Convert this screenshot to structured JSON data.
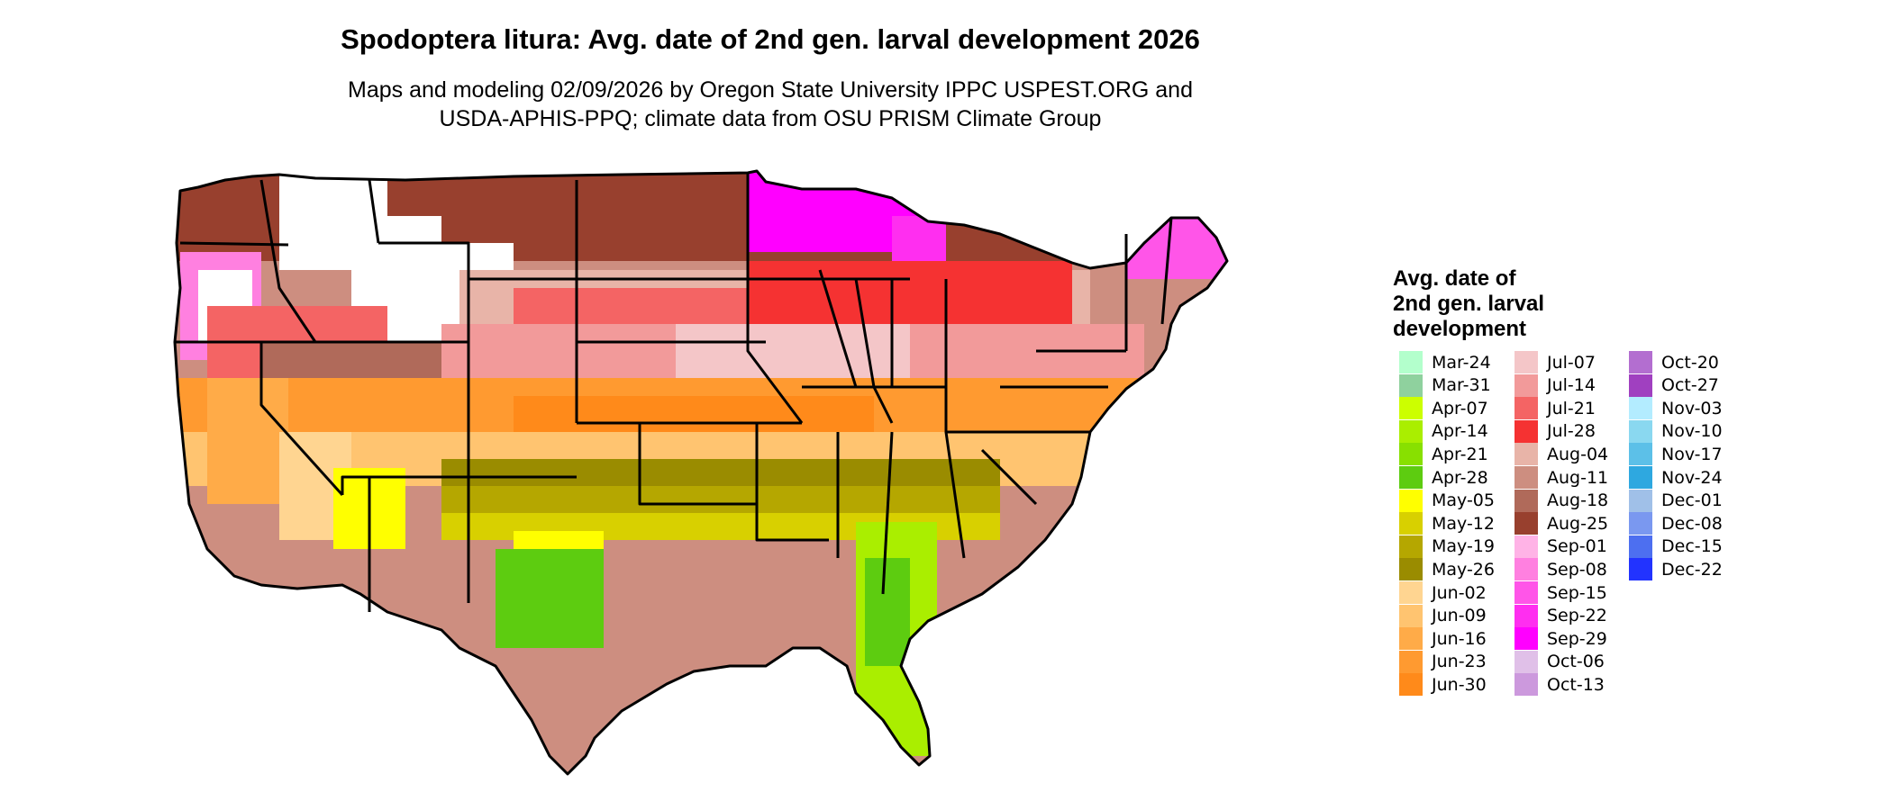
{
  "title": "Spodoptera litura: Avg. date of 2nd gen. larval development 2026",
  "subtitle_line1": "Maps and modeling 02/09/2026 by Oregon State University IPPC USPEST.ORG and",
  "subtitle_line2": "USDA-APHIS-PPQ; climate data from OSU PRISM Climate Group",
  "legend": {
    "title_lines": [
      "Avg. date of",
      "2nd gen. larval",
      "development"
    ],
    "items": [
      {
        "label": "Mar-24",
        "color": "#b3ffcc"
      },
      {
        "label": "Mar-31",
        "color": "#8fd19e"
      },
      {
        "label": "Apr-07",
        "color": "#ccff00"
      },
      {
        "label": "Apr-14",
        "color": "#aaee00"
      },
      {
        "label": "Apr-21",
        "color": "#88e000"
      },
      {
        "label": "Apr-28",
        "color": "#5dcc10"
      },
      {
        "label": "May-05",
        "color": "#ffff00"
      },
      {
        "label": "May-12",
        "color": "#d8d000"
      },
      {
        "label": "May-19",
        "color": "#b5a700"
      },
      {
        "label": "May-26",
        "color": "#9a8c00"
      },
      {
        "label": "Jun-02",
        "color": "#ffd591"
      },
      {
        "label": "Jun-09",
        "color": "#ffc470"
      },
      {
        "label": "Jun-16",
        "color": "#ffab48"
      },
      {
        "label": "Jun-23",
        "color": "#ff9a30"
      },
      {
        "label": "Jun-30",
        "color": "#ff8a1a"
      },
      {
        "label": "Jul-07",
        "color": "#f4c6c8"
      },
      {
        "label": "Jul-14",
        "color": "#f29a9a"
      },
      {
        "label": "Jul-21",
        "color": "#f46464"
      },
      {
        "label": "Jul-28",
        "color": "#f53232"
      },
      {
        "label": "Aug-04",
        "color": "#e8b4a8"
      },
      {
        "label": "Aug-11",
        "color": "#cd8e80"
      },
      {
        "label": "Aug-18",
        "color": "#b06a5a"
      },
      {
        "label": "Aug-25",
        "color": "#98402e"
      },
      {
        "label": "Sep-01",
        "color": "#ffb3e6"
      },
      {
        "label": "Sep-08",
        "color": "#ff80e0"
      },
      {
        "label": "Sep-15",
        "color": "#ff55e8"
      },
      {
        "label": "Sep-22",
        "color": "#ff2ef0"
      },
      {
        "label": "Sep-29",
        "color": "#ff00ff"
      },
      {
        "label": "Oct-06",
        "color": "#e0c0e8"
      },
      {
        "label": "Oct-13",
        "color": "#cc99dd"
      },
      {
        "label": "Oct-20",
        "color": "#b36ed0"
      },
      {
        "label": "Oct-27",
        "color": "#a040c0"
      },
      {
        "label": "Nov-03",
        "color": "#b3ecff"
      },
      {
        "label": "Nov-10",
        "color": "#8ad8f0"
      },
      {
        "label": "Nov-17",
        "color": "#5cc0e8"
      },
      {
        "label": "Nov-24",
        "color": "#2ea8e0"
      },
      {
        "label": "Dec-01",
        "color": "#a0c0e8"
      },
      {
        "label": "Dec-08",
        "color": "#7a98f0"
      },
      {
        "label": "Dec-15",
        "color": "#4d6ff0"
      },
      {
        "label": "Dec-22",
        "color": "#2233ff"
      }
    ]
  }
}
